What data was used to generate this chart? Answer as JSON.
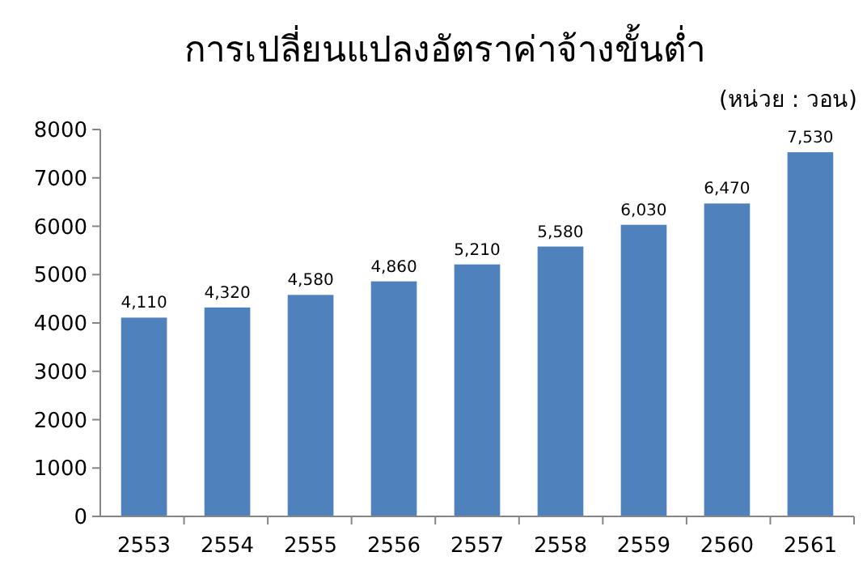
{
  "chart_data": {
    "type": "bar",
    "title": "การเปลี่ยนแปลงอัตราค่าจ้างขั้นต่ำ",
    "annotations": [
      "(หน่วย : วอน)"
    ],
    "categories": [
      "2553",
      "2554",
      "2555",
      "2556",
      "2557",
      "2558",
      "2559",
      "2560",
      "2561"
    ],
    "values": [
      4110,
      4320,
      4580,
      4860,
      5210,
      5580,
      6030,
      6470,
      7530
    ],
    "value_labels": [
      "4,110",
      "4,320",
      "4,580",
      "4,860",
      "5,210",
      "5,580",
      "6,030",
      "6,470",
      "7,530"
    ],
    "color": "#4f81bd",
    "ylim": [
      0,
      8000
    ],
    "yticks": [
      0,
      1000,
      2000,
      3000,
      4000,
      5000,
      6000,
      7000,
      8000
    ],
    "grid": false
  }
}
